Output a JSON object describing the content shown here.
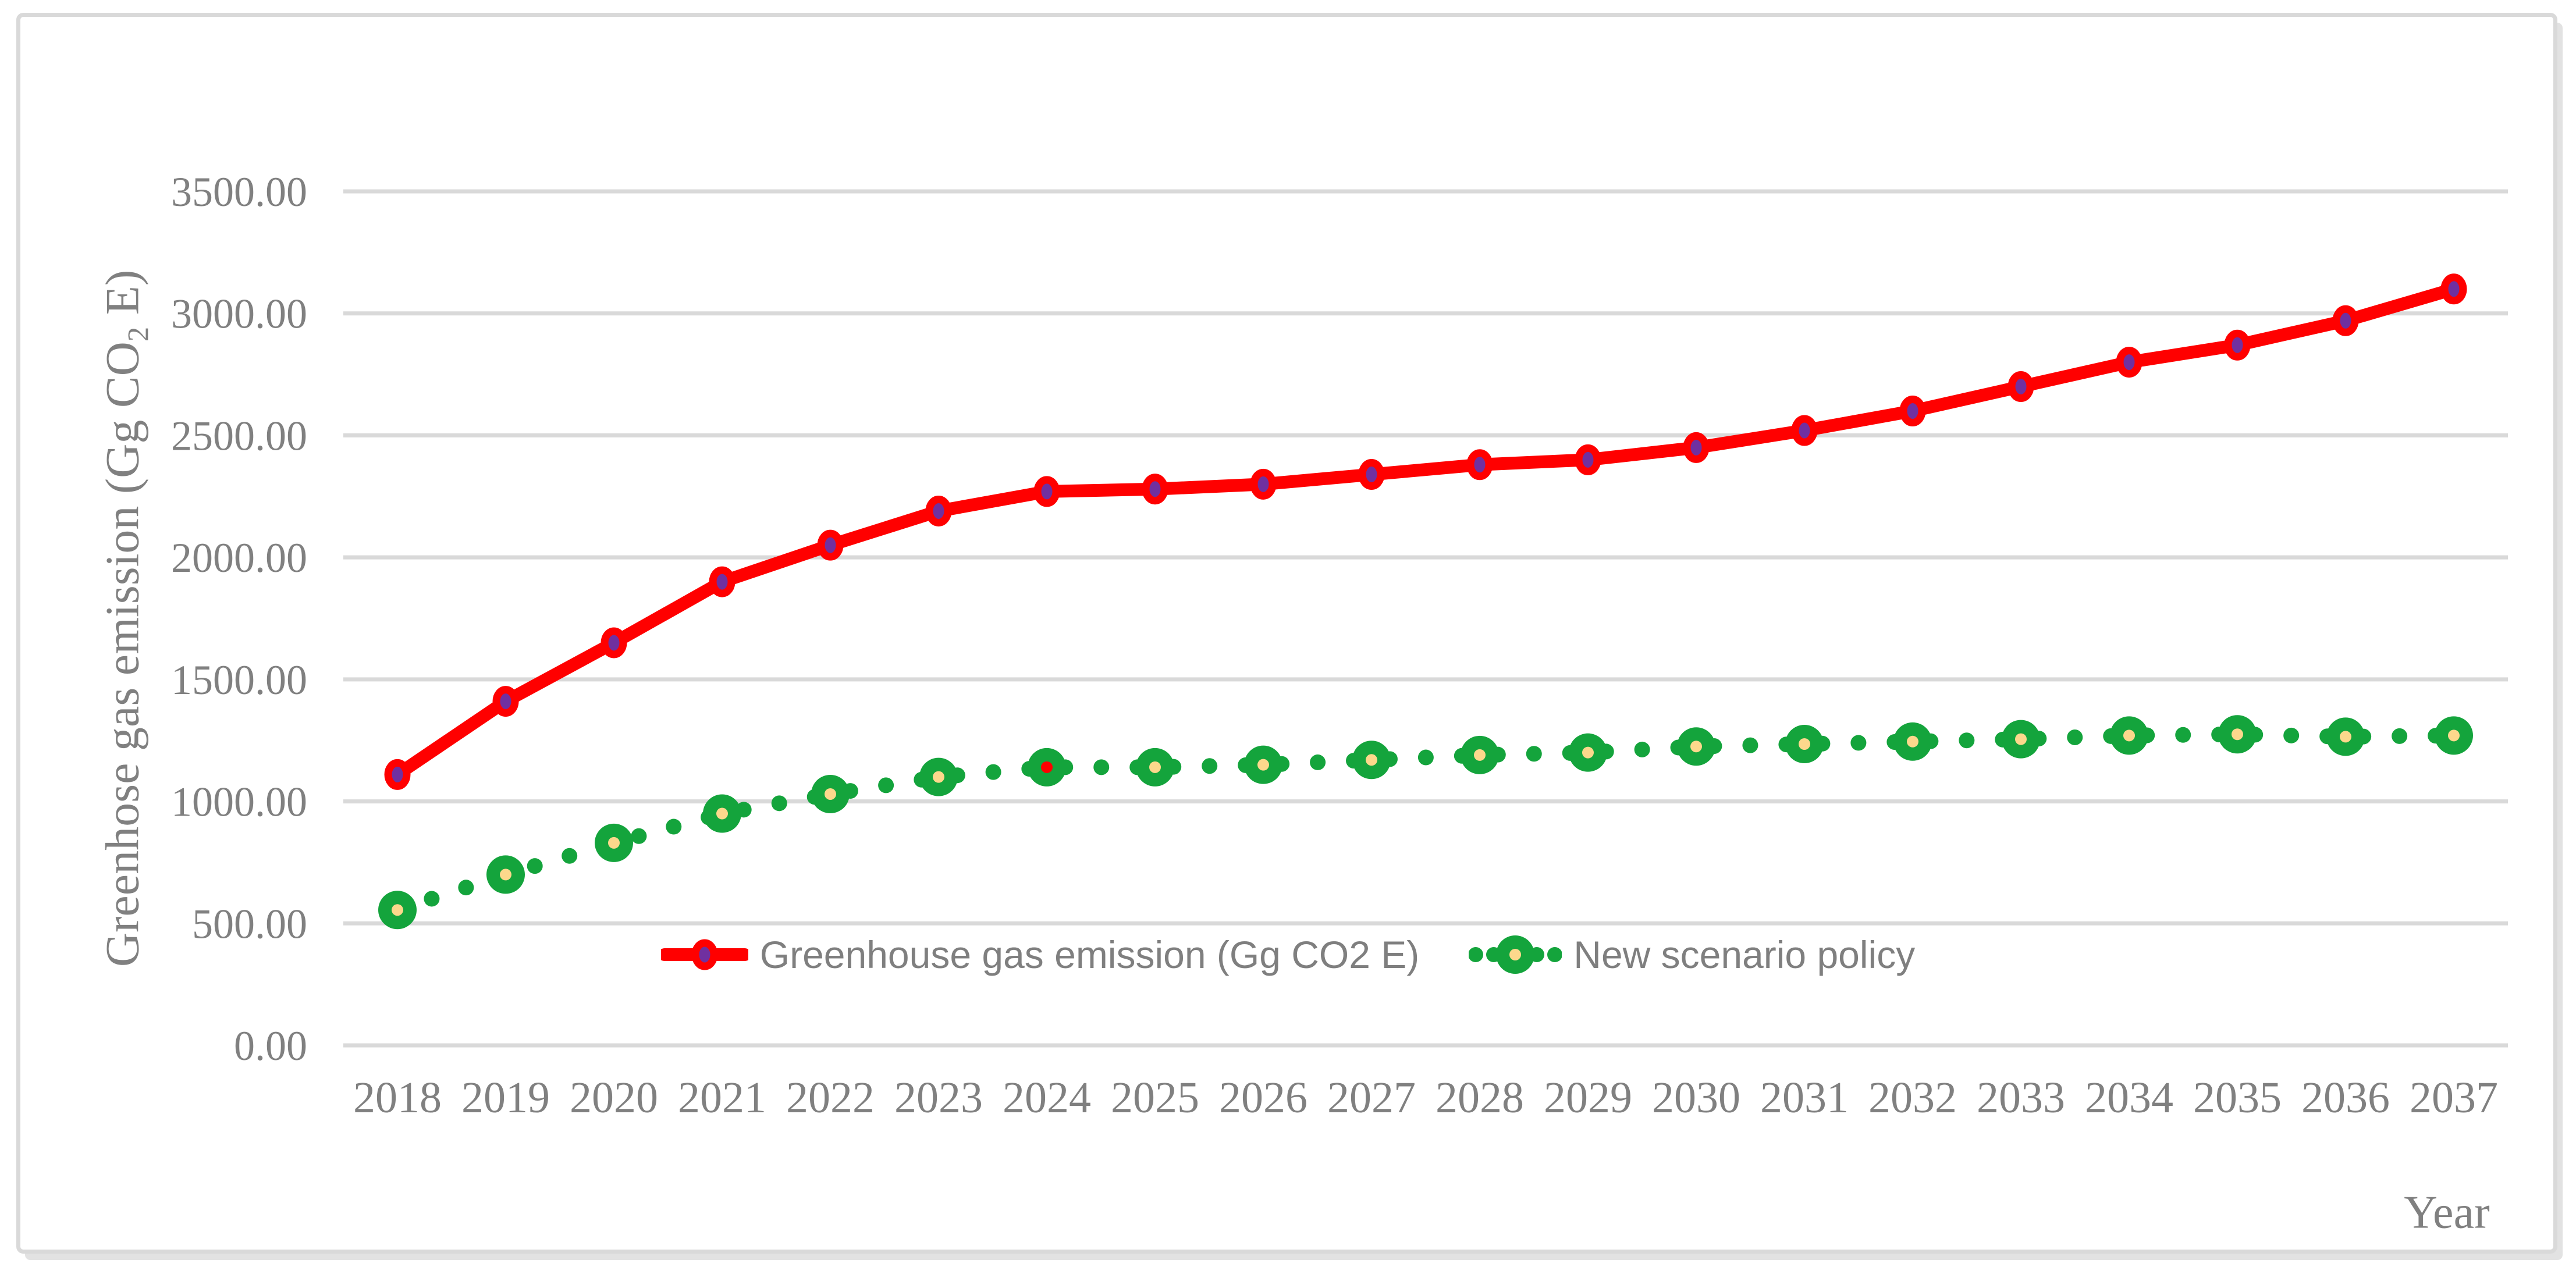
{
  "colors": {
    "background": "#ffffff",
    "frame_border": "#d9d9d9",
    "gridline": "#d9d9d9",
    "tick_text": "#808080",
    "legend_text": "#7f7f7f",
    "red_line": "#ff0000",
    "red_marker_fill": "#7030a0",
    "green_line": "#14a43c",
    "green_marker_center": "#fcd88c"
  },
  "y_axis": {
    "title_parts": {
      "prefix": "Greenhose gas emission (Gg CO",
      "sub": "2",
      "suffix": " E)"
    }
  },
  "x_axis": {
    "title": "Year"
  },
  "chart_data": {
    "type": "line",
    "title": "",
    "xlabel": "Year",
    "ylabel": "Greenhose gas emission (Gg CO2 E)",
    "grid": true,
    "legend_position": "bottom-center-inside",
    "ylim": [
      0,
      3500
    ],
    "ytick_step": 500,
    "ytick_labels": [
      "0.00",
      "500.00",
      "1000.00",
      "1500.00",
      "2000.00",
      "2500.00",
      "3000.00",
      "3500.00"
    ],
    "categories": [
      "2018",
      "2019",
      "2020",
      "2021",
      "2022",
      "2023",
      "2024",
      "2025",
      "2026",
      "2027",
      "2028",
      "2029",
      "2030",
      "2031",
      "2032",
      "2033",
      "2034",
      "2035",
      "2036",
      "2037"
    ],
    "series": [
      {
        "name": "Greenhouse gas emission (Gg CO2 E)",
        "style": "solid",
        "line_color": "#ff0000",
        "marker": "circle-purple-red-ring",
        "marker_fill": "#7030a0",
        "values": [
          1110,
          1410,
          1650,
          1900,
          2050,
          2190,
          2270,
          2280,
          2300,
          2340,
          2380,
          2400,
          2450,
          2520,
          2600,
          2700,
          2800,
          2870,
          2970,
          3100
        ]
      },
      {
        "name": "New scenario policy",
        "style": "dotted",
        "line_color": "#14a43c",
        "marker": "circle-green-yellow-center",
        "marker_center": "#fcd88c",
        "marker_center_overrides": {
          "2024": "#ff0000"
        },
        "values": [
          555,
          700,
          830,
          950,
          1030,
          1100,
          1140,
          1140,
          1150,
          1170,
          1190,
          1200,
          1225,
          1235,
          1245,
          1255,
          1270,
          1275,
          1265,
          1270
        ]
      }
    ]
  }
}
